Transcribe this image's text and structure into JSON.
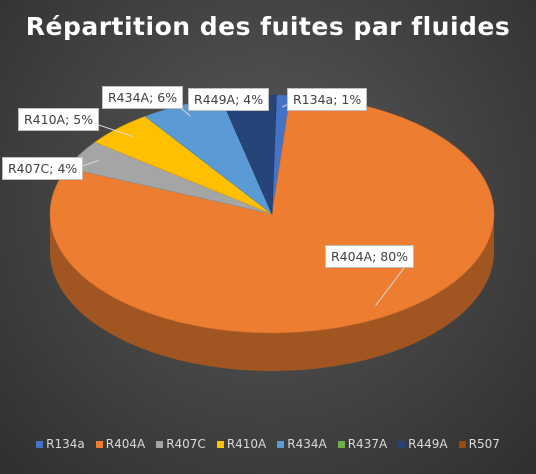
{
  "chart_data": {
    "type": "pie",
    "title": "Répartition des fuites par fluides",
    "legend_position": "bottom",
    "slices": [
      {
        "name": "R134a",
        "value": 1,
        "label": "R134a; 1%",
        "color": "#4472c4"
      },
      {
        "name": "R404A",
        "value": 80,
        "label": "R404A; 80%",
        "color": "#ed7d31"
      },
      {
        "name": "R407C",
        "value": 4,
        "label": "R407C; 4%",
        "color": "#a5a5a5"
      },
      {
        "name": "R410A",
        "value": 5,
        "label": "R410A; 5%",
        "color": "#ffc000"
      },
      {
        "name": "R434A",
        "value": 6,
        "label": "R434A; 6%",
        "color": "#5b9bd5"
      },
      {
        "name": "R437A",
        "value": 0,
        "label": "",
        "color": "#70ad47"
      },
      {
        "name": "R449A",
        "value": 4,
        "label": "R449A; 4%",
        "color": "#264478"
      },
      {
        "name": "R507",
        "value": 0,
        "label": "",
        "color": "#9e480e"
      }
    ]
  }
}
